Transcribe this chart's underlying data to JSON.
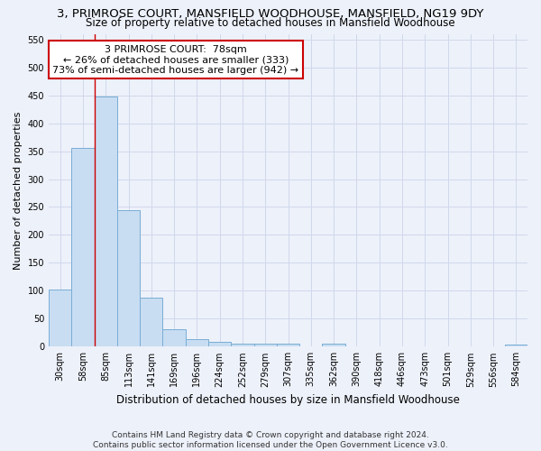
{
  "title_line1": "3, PRIMROSE COURT, MANSFIELD WOODHOUSE, MANSFIELD, NG19 9DY",
  "title_line2": "Size of property relative to detached houses in Mansfield Woodhouse",
  "xlabel": "Distribution of detached houses by size in Mansfield Woodhouse",
  "ylabel": "Number of detached properties",
  "categories": [
    "30sqm",
    "58sqm",
    "85sqm",
    "113sqm",
    "141sqm",
    "169sqm",
    "196sqm",
    "224sqm",
    "252sqm",
    "279sqm",
    "307sqm",
    "335sqm",
    "362sqm",
    "390sqm",
    "418sqm",
    "446sqm",
    "473sqm",
    "501sqm",
    "529sqm",
    "556sqm",
    "584sqm"
  ],
  "values": [
    102,
    355,
    447,
    244,
    87,
    31,
    13,
    8,
    5,
    5,
    5,
    0,
    5,
    0,
    0,
    0,
    0,
    0,
    0,
    0,
    3
  ],
  "bar_color": "#c8ddf2",
  "bar_edge_color": "#7aadd4",
  "grid_color": "#d0d8ea",
  "background_color": "#edf1fa",
  "vline_x_idx": 1.5,
  "vline_color": "#cc0000",
  "annotation_line1": "3 PRIMROSE COURT:  78sqm",
  "annotation_line2": "← 26% of detached houses are smaller (333)",
  "annotation_line3": "73% of semi-detached houses are larger (942) →",
  "annotation_box_color": "#ffffff",
  "annotation_box_edge_color": "#cc0000",
  "footer_text": "Contains HM Land Registry data © Crown copyright and database right 2024.\nContains public sector information licensed under the Open Government Licence v3.0.",
  "ylim": [
    0,
    560
  ],
  "yticks": [
    0,
    50,
    100,
    150,
    200,
    250,
    300,
    350,
    400,
    450,
    500,
    550
  ],
  "title_fontsize": 9.5,
  "subtitle_fontsize": 8.5,
  "ylabel_fontsize": 8,
  "xlabel_fontsize": 8.5,
  "tick_fontsize": 7,
  "annotation_fontsize": 8,
  "footer_fontsize": 6.5
}
